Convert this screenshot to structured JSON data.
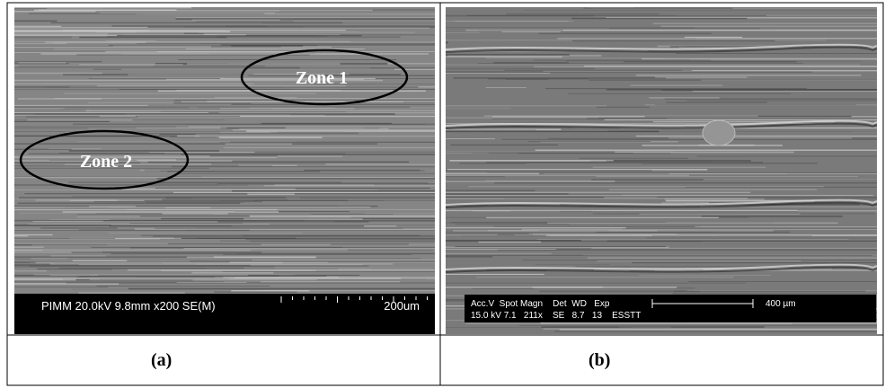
{
  "panels": [
    {
      "zones": [
        {
          "label": "Zone 1"
        },
        {
          "label": "Zone 2"
        }
      ],
      "info_bar": {
        "text": "PIMM 20.0kV 9.8mm x200 SE(M)",
        "scale": "200um"
      },
      "caption": "(a)"
    },
    {
      "info_bar": {
        "header": "Acc.V  Spot Magn    Det  WD   Exp",
        "values": "15.0 kV 7.1   211x    SE   8.7   13    ESSTT",
        "scale": "400 µm"
      },
      "caption": "(b)"
    }
  ]
}
